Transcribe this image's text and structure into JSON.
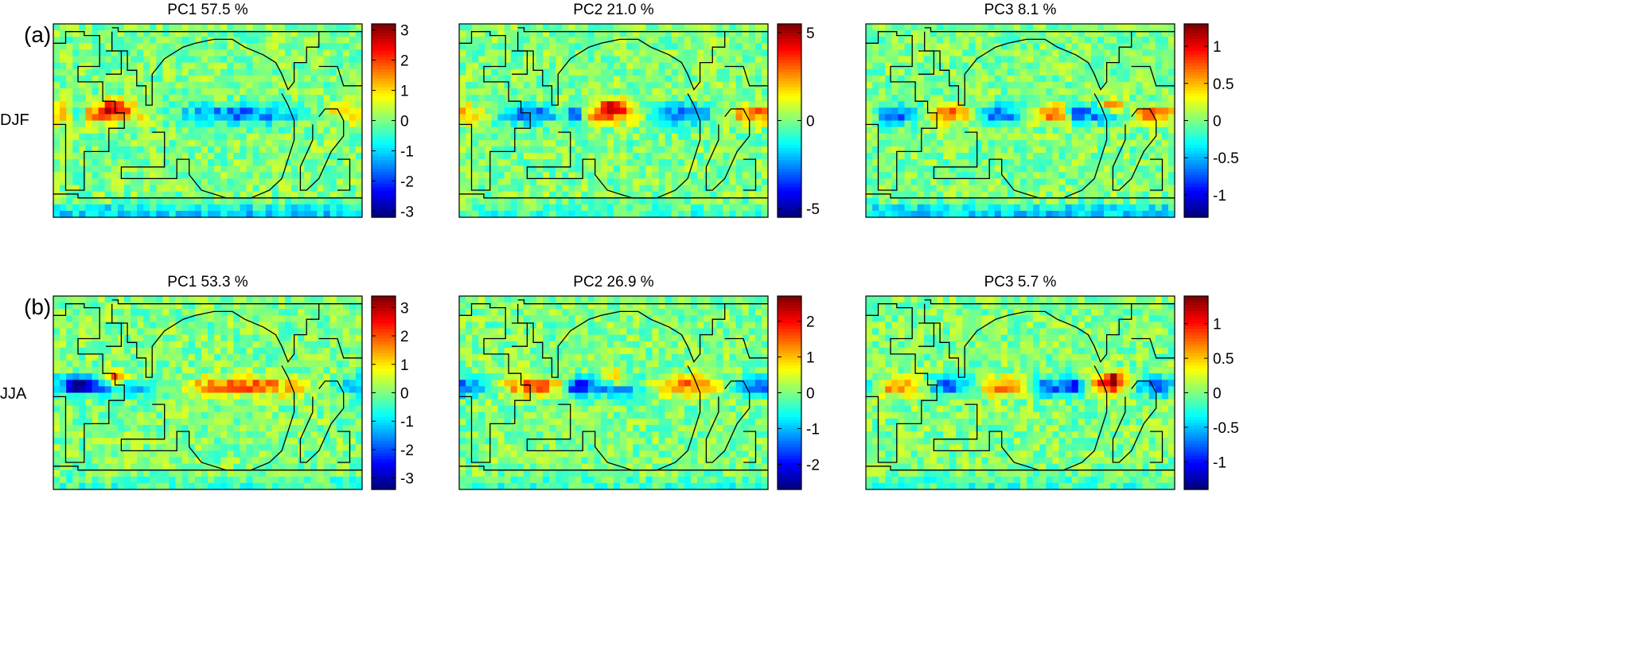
{
  "figure": {
    "rows": [
      {
        "panel_label": "(a)",
        "season": "DJF"
      },
      {
        "panel_label": "(b)",
        "season": "JJA"
      }
    ]
  },
  "chart_data": [
    {
      "type": "heatmap",
      "title": "PC1    57.5  %",
      "row": 0,
      "col": 0,
      "colorbar_ticks": [
        3,
        2,
        1,
        0,
        -1,
        -2,
        -3
      ],
      "clim": [
        -3.2,
        3.2
      ]
    },
    {
      "type": "heatmap",
      "title": "PC2    21.0  %",
      "row": 0,
      "col": 1,
      "colorbar_ticks": [
        5,
        0,
        -5
      ],
      "clim": [
        -5.5,
        5.5
      ]
    },
    {
      "type": "heatmap",
      "title": "PC3    8.1  %",
      "row": 0,
      "col": 2,
      "colorbar_ticks": [
        1,
        0.5,
        0,
        -0.5,
        -1
      ],
      "clim": [
        -1.3,
        1.3
      ]
    },
    {
      "type": "heatmap",
      "title": "PC1    53.3  %",
      "row": 1,
      "col": 0,
      "colorbar_ticks": [
        3,
        2,
        1,
        0,
        -1,
        -2,
        -3
      ],
      "clim": [
        -3.4,
        3.4
      ]
    },
    {
      "type": "heatmap",
      "title": "PC2    26.9  %",
      "row": 1,
      "col": 1,
      "colorbar_ticks": [
        2,
        1,
        0,
        -1,
        -2
      ],
      "clim": [
        -2.7,
        2.7
      ]
    },
    {
      "type": "heatmap",
      "title": "PC3    5.7  %",
      "row": 1,
      "col": 2,
      "colorbar_ticks": [
        1,
        0.5,
        0,
        -0.5,
        -1
      ],
      "clim": [
        -1.4,
        1.4
      ]
    }
  ],
  "colormap": "jet"
}
